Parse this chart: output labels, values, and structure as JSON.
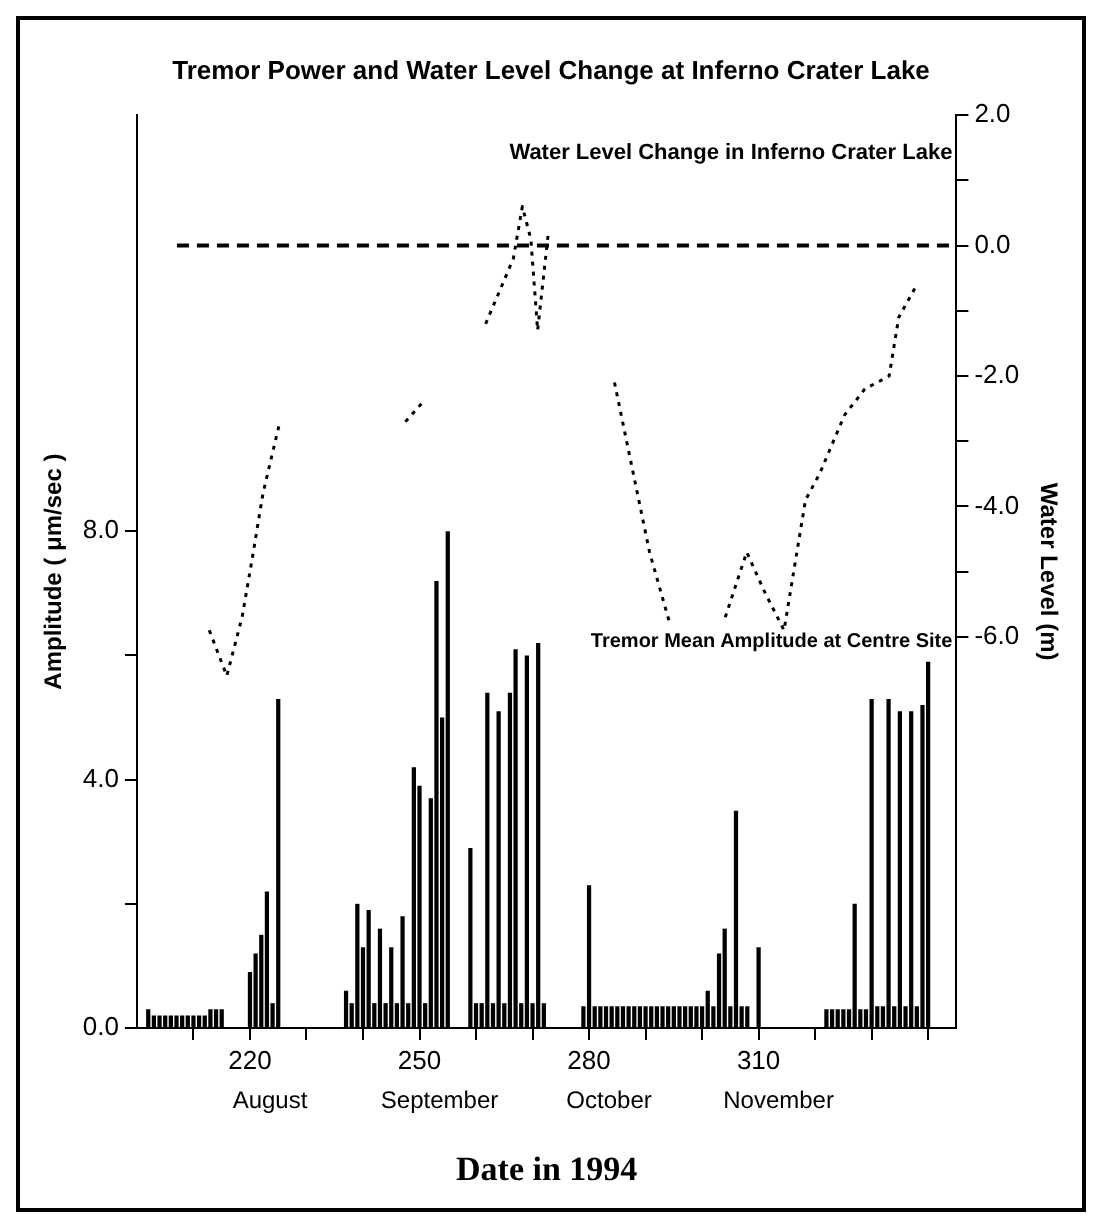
{
  "chart_data": {
    "type": "bar",
    "title": "Tremor Power and Water Level Change at Inferno Crater Lake",
    "xlabel": "Date in 1994",
    "ylabel": "Amplitude ( μm/sec )",
    "y2label": "Water Level (m)",
    "xlim": [
      200,
      345
    ],
    "xticks": [
      {
        "value": 210,
        "label": null
      },
      220,
      {
        "value": 230,
        "label": null
      },
      {
        "value": 240,
        "label": null
      },
      250,
      {
        "value": 260,
        "label": null
      },
      {
        "value": 270,
        "label": null
      },
      280,
      {
        "value": 290,
        "label": null
      },
      {
        "value": 300,
        "label": null
      },
      310,
      {
        "value": 320,
        "label": null
      },
      {
        "value": 330,
        "label": null
      },
      {
        "value": 340,
        "label": null
      }
    ],
    "annotations": [
      "August",
      "September",
      "October",
      "November"
    ],
    "ylim": [
      0,
      14.7
    ],
    "yticks": [
      {
        "value": 0,
        "label": "0.0"
      },
      {
        "value": 2,
        "label": null
      },
      {
        "value": 4,
        "label": "4.0"
      },
      {
        "value": 6,
        "label": null
      },
      {
        "value": 8,
        "label": "8.0"
      }
    ],
    "y2lim": [
      -12,
      2
    ],
    "y2ticks": [
      {
        "value": -6,
        "label": "-6.0"
      },
      {
        "value": -5,
        "label": null
      },
      {
        "value": -4,
        "label": "-4.0"
      },
      {
        "value": -3,
        "label": null
      },
      {
        "value": -2,
        "label": "-2.0"
      },
      {
        "value": -1,
        "label": null
      },
      {
        "value": 0,
        "label": "0.0"
      },
      {
        "value": 1,
        "label": null
      },
      {
        "value": 2,
        "label": "2.0"
      }
    ],
    "ref_lines": [
      {
        "axis": "y2",
        "value": 0,
        "color": "#000000",
        "line_style": "dashed"
      }
    ],
    "grid": false,
    "legend": false,
    "series": [
      {
        "name": "Tremor Mean Amplitude at Centre Site",
        "color": "#000000",
        "x": [
          202,
          203,
          204,
          205,
          206,
          207,
          208,
          209,
          210,
          211,
          212,
          213,
          214,
          215,
          220,
          221,
          222,
          223,
          224,
          225,
          237,
          238,
          239,
          240,
          241,
          242,
          243,
          244,
          245,
          246,
          247,
          248,
          249,
          250,
          251,
          252,
          253,
          254,
          255,
          259,
          260,
          261,
          262,
          263,
          264,
          265,
          266,
          267,
          268,
          269,
          270,
          271,
          272,
          279,
          280,
          281,
          282,
          283,
          284,
          285,
          286,
          287,
          288,
          289,
          290,
          291,
          292,
          293,
          294,
          295,
          296,
          297,
          298,
          299,
          300,
          301,
          302,
          303,
          304,
          305,
          306,
          307,
          308,
          310,
          322,
          323,
          324,
          325,
          326,
          327,
          328,
          329,
          330,
          331,
          332,
          333,
          334,
          335,
          336,
          337,
          338,
          339,
          340
        ],
        "values": [
          0.3,
          0.2,
          0.2,
          0.2,
          0.2,
          0.2,
          0.2,
          0.2,
          0.2,
          0.2,
          0.2,
          0.3,
          0.3,
          0.3,
          0.9,
          1.2,
          1.5,
          2.2,
          0.4,
          5.3,
          0.6,
          0.4,
          2.0,
          1.3,
          1.9,
          0.4,
          1.6,
          0.4,
          1.3,
          0.4,
          1.8,
          0.4,
          4.2,
          3.9,
          0.4,
          3.7,
          7.2,
          5.0,
          8.0,
          2.9,
          0.4,
          0.4,
          5.4,
          0.4,
          5.1,
          0.4,
          5.4,
          6.1,
          0.4,
          6.0,
          0.4,
          6.2,
          0.4,
          0.35,
          2.3,
          0.35,
          0.35,
          0.35,
          0.35,
          0.35,
          0.35,
          0.35,
          0.35,
          0.35,
          0.35,
          0.35,
          0.35,
          0.35,
          0.35,
          0.35,
          0.35,
          0.35,
          0.35,
          0.35,
          0.35,
          0.6,
          0.35,
          1.2,
          1.6,
          0.35,
          3.5,
          0.35,
          0.35,
          1.3,
          0.3,
          0.3,
          0.3,
          0.3,
          0.3,
          2.0,
          0.3,
          0.3,
          5.3,
          0.35,
          0.35,
          5.3,
          0.35,
          5.1,
          0.35,
          5.1,
          0.35,
          5.2,
          5.9
        ]
      },
      {
        "type": "line",
        "axis": "y2",
        "name": "Water Level Change in Inferno Crater Lake",
        "color": "#000000",
        "line_style": "dotted",
        "marker": "none",
        "x": [
          212.8,
          215.9,
          218.6,
          220.4,
          222.3,
          225.3,
          236,
          247.5,
          250.6,
          256,
          261.7,
          266.6,
          268.2,
          269.7,
          270.9,
          272.8,
          279,
          284.5,
          287.6,
          290.7,
          294.3,
          299,
          304.1,
          307.9,
          311,
          314.5,
          318.3,
          320.8,
          325.2,
          328.8,
          333.1,
          334.8,
          338
        ],
        "values": [
          -5.9,
          -6.6,
          -5.7,
          -4.8,
          -3.8,
          -2.7,
          null,
          -2.7,
          -2.4,
          null,
          -1.2,
          -0.2,
          0.6,
          0.1,
          -1.3,
          0.2,
          null,
          -2.1,
          -3.4,
          -4.7,
          -5.8,
          null,
          -5.7,
          -4.7,
          -5.3,
          -5.9,
          -3.9,
          -3.5,
          -2.6,
          -2.2,
          -2.0,
          -1.1,
          -0.6
        ]
      }
    ]
  }
}
